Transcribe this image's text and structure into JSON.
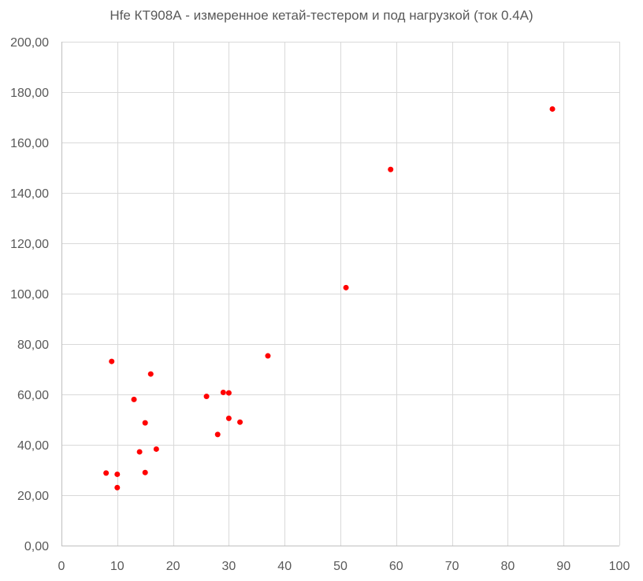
{
  "chart_data": {
    "type": "scatter",
    "title": "Hfe КТ908А - измеренное кетай-тестером и под нагрузкой (ток 0.4А)",
    "xlim": [
      0,
      100
    ],
    "ylim": [
      0,
      200
    ],
    "x_ticks": [
      0,
      10,
      20,
      30,
      40,
      50,
      60,
      70,
      80,
      90,
      100
    ],
    "y_ticks": [
      0,
      20,
      40,
      60,
      80,
      100,
      120,
      140,
      160,
      180,
      200
    ],
    "x_tick_labels": [
      "0",
      "10",
      "20",
      "30",
      "40",
      "50",
      "60",
      "70",
      "80",
      "90",
      "100"
    ],
    "y_tick_labels": [
      "0,00",
      "20,00",
      "40,00",
      "60,00",
      "80,00",
      "100,00",
      "120,00",
      "140,00",
      "160,00",
      "180,00",
      "200,00"
    ],
    "grid": true,
    "marker_color": "#ff0000",
    "points": [
      {
        "x": 8,
        "y": 28.8
      },
      {
        "x": 9,
        "y": 73.1
      },
      {
        "x": 10,
        "y": 28.3
      },
      {
        "x": 10,
        "y": 23.0
      },
      {
        "x": 13,
        "y": 58.0
      },
      {
        "x": 14,
        "y": 37.2
      },
      {
        "x": 15,
        "y": 48.7
      },
      {
        "x": 15,
        "y": 29.0
      },
      {
        "x": 16,
        "y": 68.1
      },
      {
        "x": 17,
        "y": 38.3
      },
      {
        "x": 26,
        "y": 59.2
      },
      {
        "x": 28,
        "y": 44.1
      },
      {
        "x": 29,
        "y": 60.8
      },
      {
        "x": 30,
        "y": 60.6
      },
      {
        "x": 30,
        "y": 50.5
      },
      {
        "x": 32,
        "y": 49.0
      },
      {
        "x": 37,
        "y": 75.3
      },
      {
        "x": 51,
        "y": 102.4
      },
      {
        "x": 59,
        "y": 149.3
      },
      {
        "x": 88,
        "y": 173.3
      }
    ]
  }
}
